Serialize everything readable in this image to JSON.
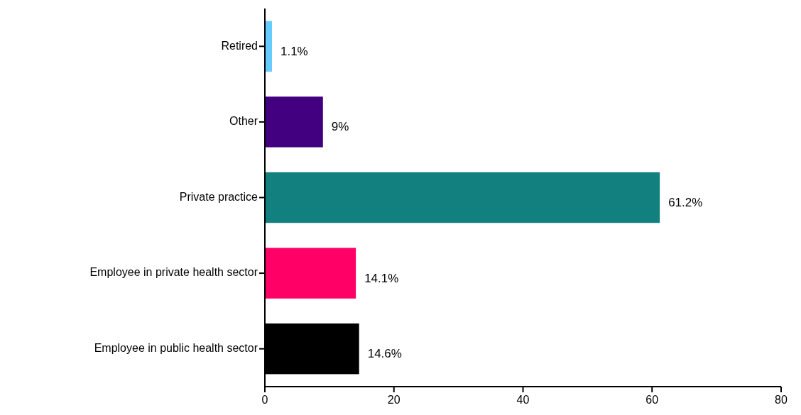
{
  "chart_data": {
    "type": "bar",
    "orientation": "horizontal",
    "categories": [
      "Retired",
      "Other",
      "Private practice",
      "Employee in private health sector",
      "Employee in public health sector"
    ],
    "values": [
      1.1,
      9,
      61.2,
      14.1,
      14.6
    ],
    "colors": [
      "#66ccff",
      "#420080",
      "#138080",
      "#ff0066",
      "#000000"
    ],
    "value_labels": [
      "1.1%",
      "9%",
      "61.2%",
      "14.1%",
      "14.6%"
    ],
    "xlim": [
      0,
      80
    ],
    "xticks": [
      0,
      20,
      40,
      60,
      80
    ]
  }
}
